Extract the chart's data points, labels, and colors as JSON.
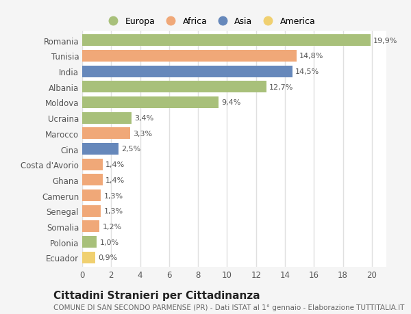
{
  "categories": [
    "Romania",
    "Tunisia",
    "India",
    "Albania",
    "Moldova",
    "Ucraina",
    "Marocco",
    "Cina",
    "Costa d'Avorio",
    "Ghana",
    "Camerun",
    "Senegal",
    "Somalia",
    "Polonia",
    "Ecuador"
  ],
  "values": [
    19.9,
    14.8,
    14.5,
    12.7,
    9.4,
    3.4,
    3.3,
    2.5,
    1.4,
    1.4,
    1.3,
    1.3,
    1.2,
    1.0,
    0.9
  ],
  "labels": [
    "19,9%",
    "14,8%",
    "14,5%",
    "12,7%",
    "9,4%",
    "3,4%",
    "3,3%",
    "2,5%",
    "1,4%",
    "1,4%",
    "1,3%",
    "1,3%",
    "1,2%",
    "1,0%",
    "0,9%"
  ],
  "colors": [
    "#a8c07a",
    "#f0a878",
    "#6688bb",
    "#a8c07a",
    "#a8c07a",
    "#a8c07a",
    "#f0a878",
    "#6688bb",
    "#f0a878",
    "#f0a878",
    "#f0a878",
    "#f0a878",
    "#f0a878",
    "#a8c07a",
    "#f0d070"
  ],
  "legend_labels": [
    "Europa",
    "Africa",
    "Asia",
    "America"
  ],
  "legend_colors": [
    "#a8c07a",
    "#f0a878",
    "#6688bb",
    "#f0d070"
  ],
  "title": "Cittadini Stranieri per Cittadinanza",
  "subtitle": "COMUNE DI SAN SECONDO PARMENSE (PR) - Dati ISTAT al 1° gennaio - Elaborazione TUTTITALIA.IT",
  "xlim": [
    0,
    21
  ],
  "xticks": [
    0,
    2,
    4,
    6,
    8,
    10,
    12,
    14,
    16,
    18,
    20
  ],
  "plot_bg_color": "#ffffff",
  "fig_bg_color": "#f5f5f5",
  "grid_color": "#e0e0e0",
  "title_fontsize": 11,
  "subtitle_fontsize": 7.5,
  "label_fontsize": 8,
  "tick_fontsize": 8.5,
  "legend_fontsize": 9
}
